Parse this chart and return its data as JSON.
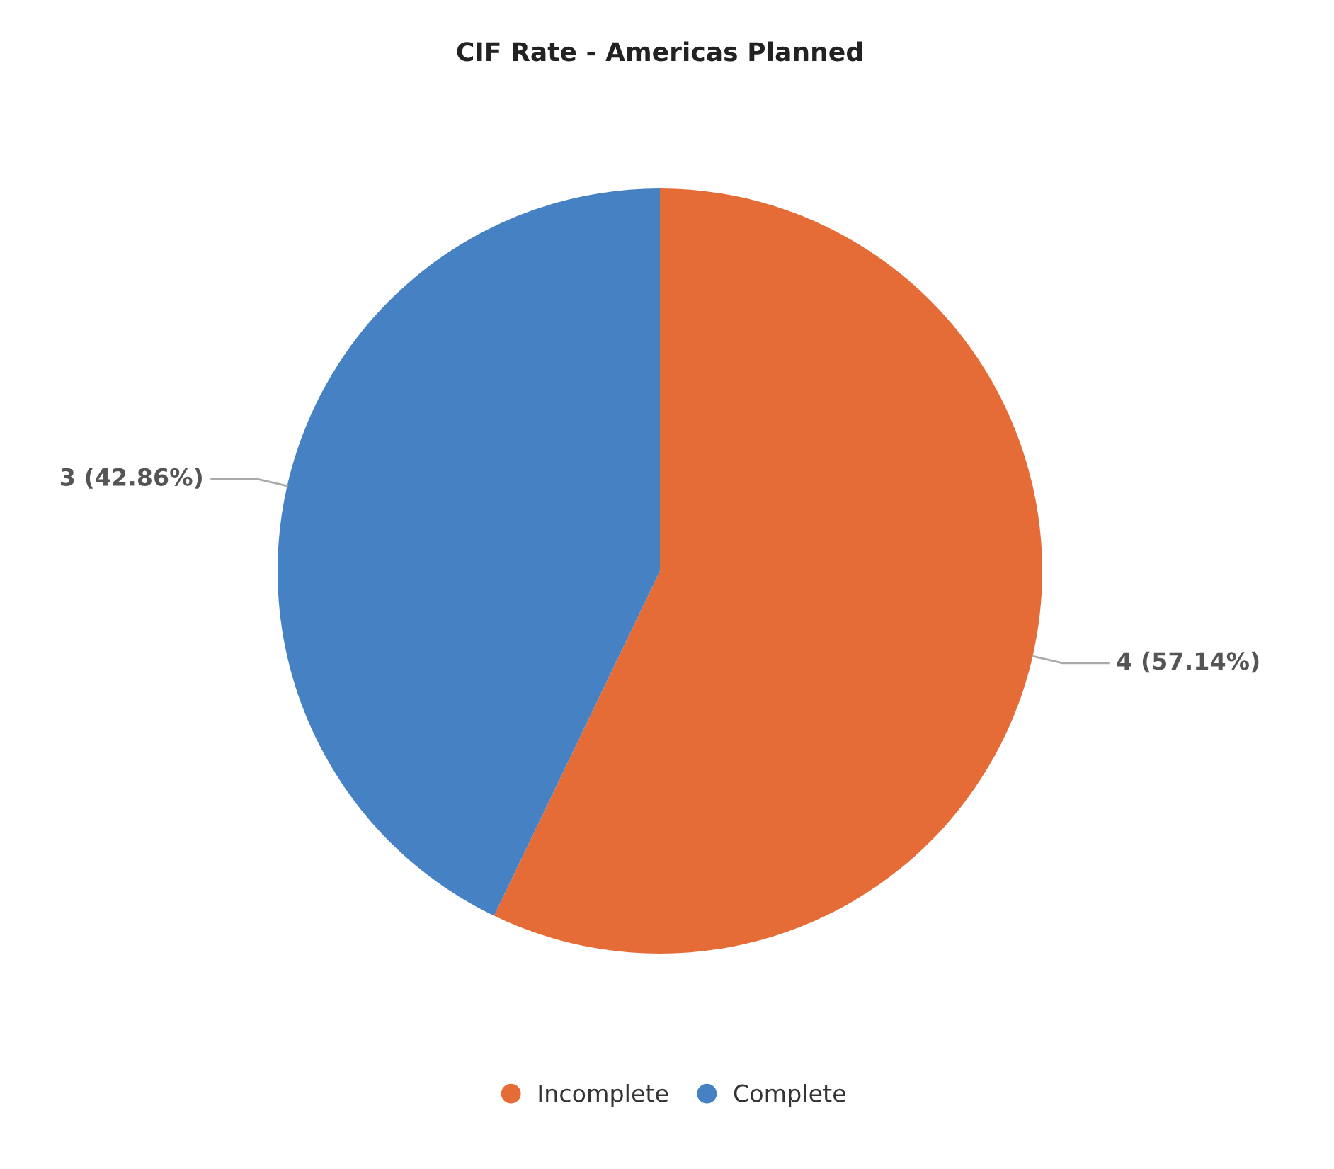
{
  "chart_data": {
    "type": "pie",
    "title": "CIF Rate - Americas Planned",
    "categories": [
      "Incomplete",
      "Complete"
    ],
    "values": [
      4,
      3
    ],
    "colors": [
      "#e66c37",
      "#4581c3"
    ],
    "value_labels": [
      "4 (57.14%)",
      "3 (42.86%)"
    ],
    "legend": "bottom"
  }
}
